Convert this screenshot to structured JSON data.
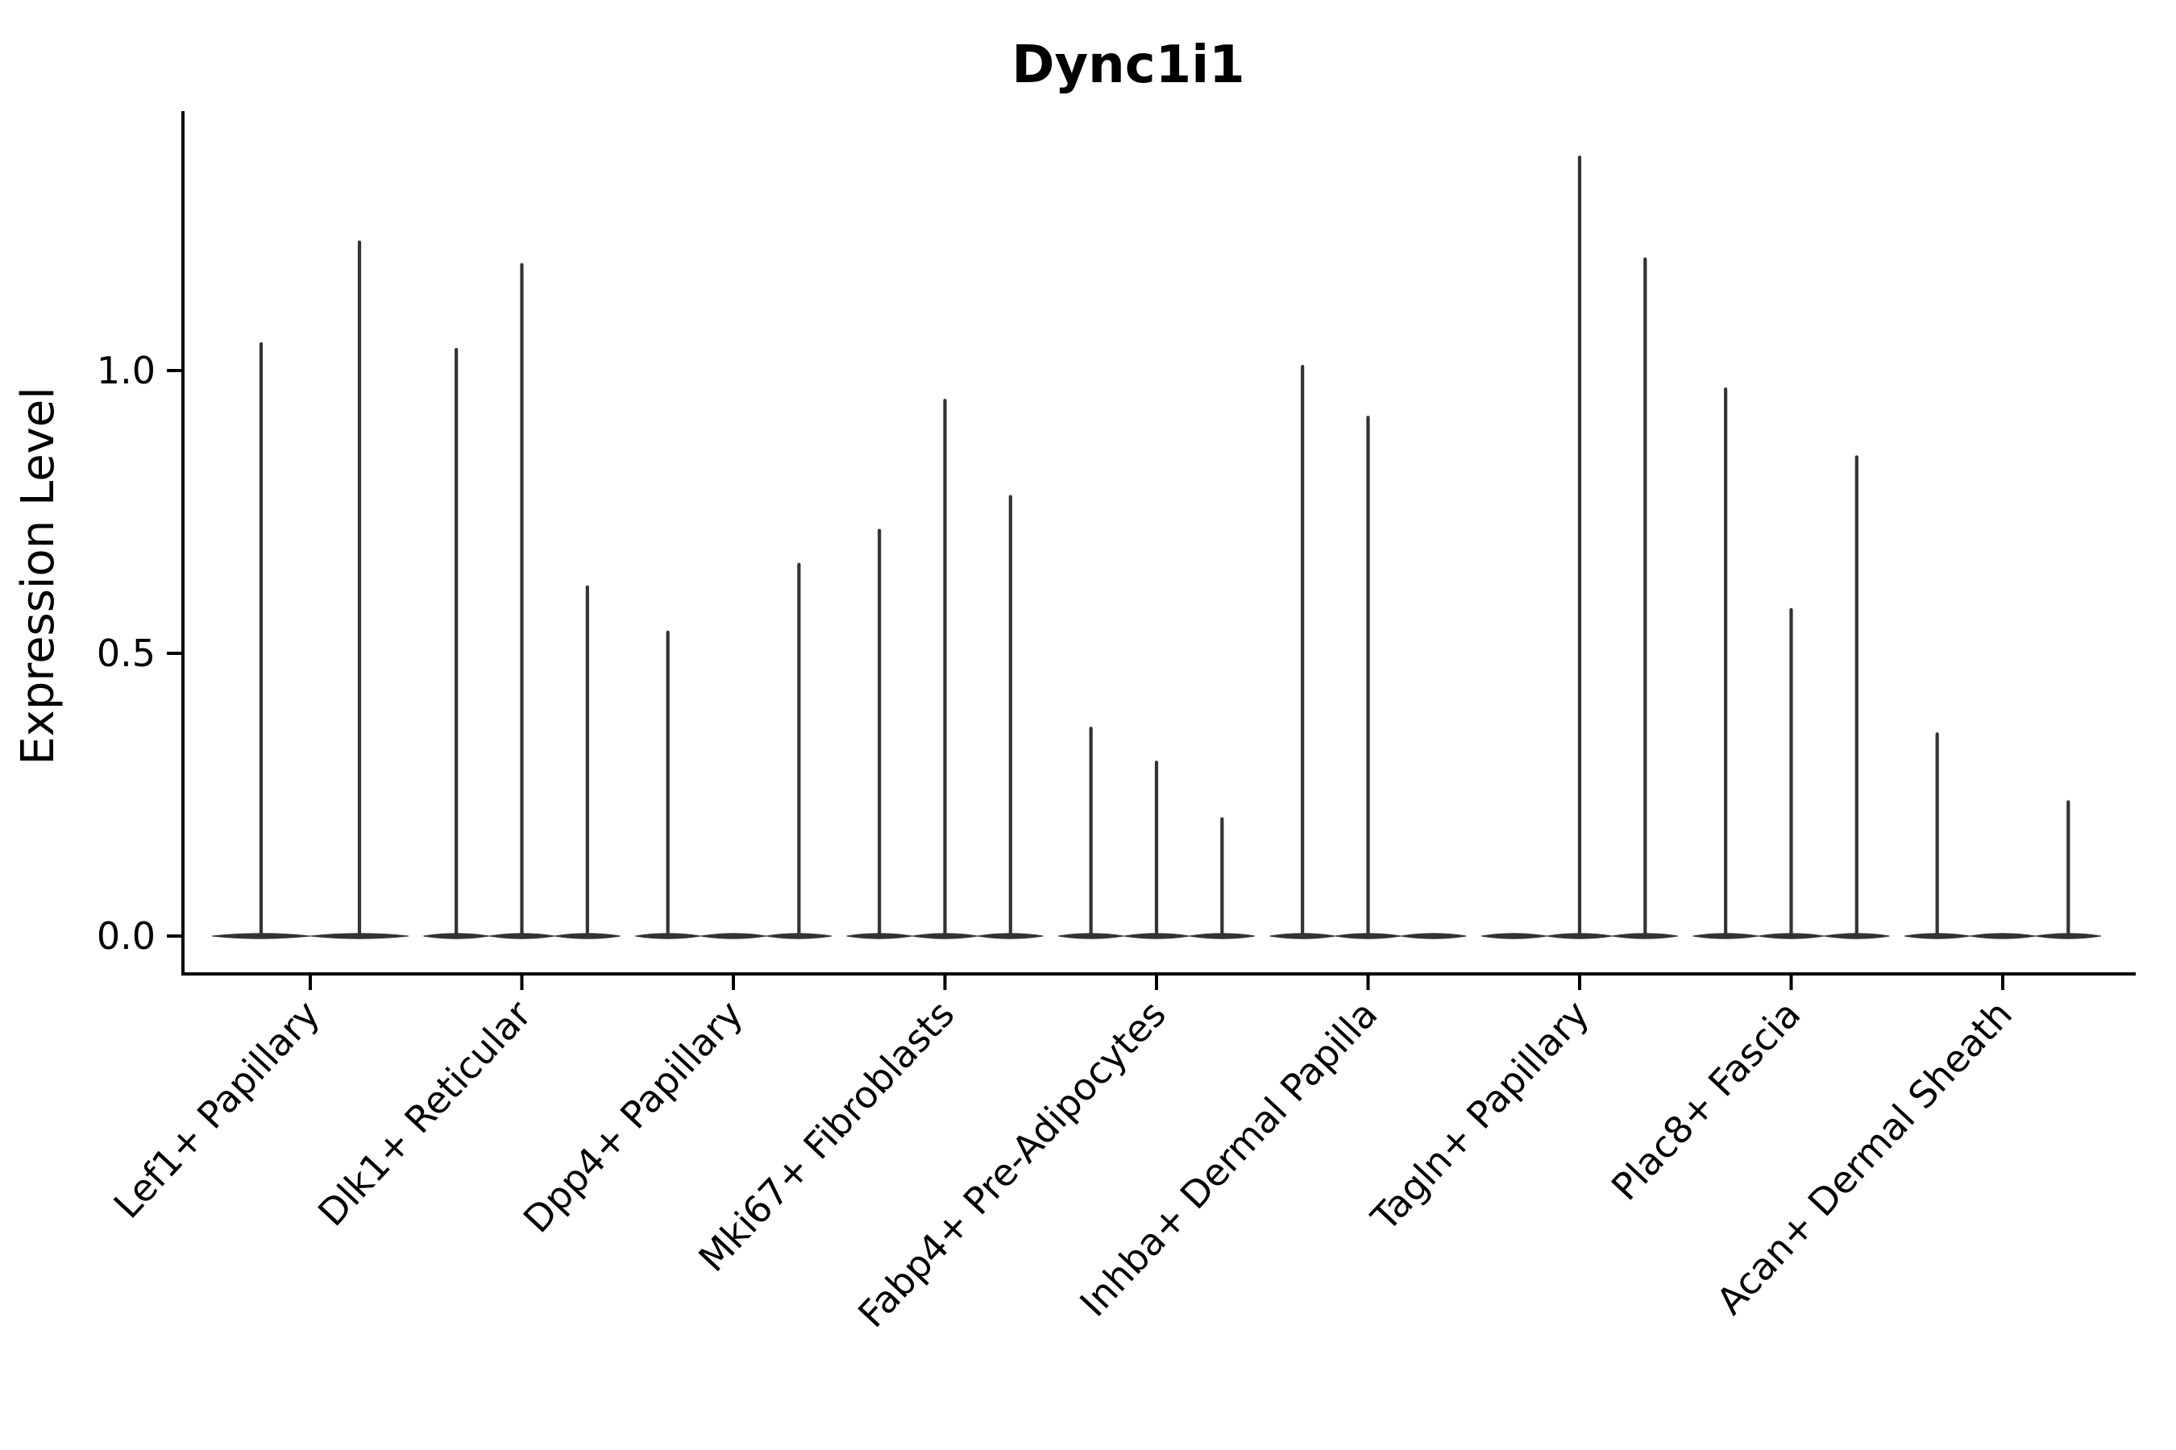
{
  "title": "Dync1i1",
  "ylabel": "Expression Level",
  "chart_data": {
    "type": "violin",
    "title": "Dync1i1",
    "xlabel": "",
    "ylabel": "Expression Level",
    "ylim": [
      -0.07,
      1.46
    ],
    "yticks": [
      0.0,
      0.5,
      1.0
    ],
    "ytick_labels": [
      "0.0",
      "0.5",
      "1.0"
    ],
    "grid": false,
    "legend": "none",
    "violin_color": "#333333",
    "axis_color": "#000000",
    "categories": [
      "Lef1+ Papillary",
      "Dlk1+ Reticular",
      "Dpp4+ Papillary",
      "Mki67+ Fibroblasts",
      "Fabp4+ Pre-Adipocytes",
      "Inhba+ Dermal Papilla",
      "Tagln+ Papillary",
      "Plac8+ Fascia",
      "Acan+ Dermal Sheath"
    ],
    "groups": [
      {
        "label": "Lef1+ Papillary",
        "violin_max": [
          1.05,
          1.23
        ]
      },
      {
        "label": "Dlk1+ Reticular",
        "violin_max": [
          1.04,
          1.19,
          0.62
        ]
      },
      {
        "label": "Dpp4+ Papillary",
        "violin_max": [
          0.54,
          0.0,
          0.66
        ]
      },
      {
        "label": "Mki67+ Fibroblasts",
        "violin_max": [
          0.72,
          0.95,
          0.78
        ]
      },
      {
        "label": "Fabp4+ Pre-Adipocytes",
        "violin_max": [
          0.37,
          0.31,
          0.21
        ]
      },
      {
        "label": "Inhba+ Dermal Papilla",
        "violin_max": [
          1.01,
          0.92,
          0.0
        ]
      },
      {
        "label": "Tagln+ Papillary",
        "violin_max": [
          0.0,
          1.38,
          1.2
        ]
      },
      {
        "label": "Plac8+ Fascia",
        "violin_max": [
          0.97,
          0.58,
          0.85
        ]
      },
      {
        "label": "Acan+ Dermal Sheath",
        "violin_max": [
          0.36,
          0.0,
          0.24
        ]
      }
    ],
    "note": "Violins are needle-shaped: wide flat base at expression 0 with a thin spike up to the max expression value per violin. Groups contain 2-3 violins; max of 0.0 means a flat base with no spike."
  }
}
